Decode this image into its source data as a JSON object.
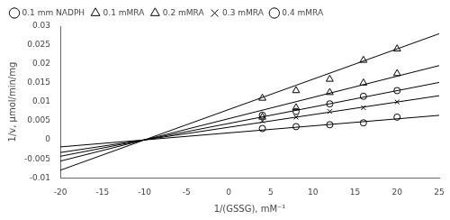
{
  "chart_data": {
    "type": "scatter",
    "xlabel": "1/(GSSG), mM⁻¹",
    "ylabel": "1/v, μmol/min/mg",
    "xlim": [
      -20,
      25
    ],
    "ylim": [
      -0.01,
      0.03
    ],
    "xticks": [
      -20,
      -15,
      -10,
      -5,
      0,
      5,
      10,
      15,
      20,
      25
    ],
    "yticks": [
      -0.01,
      -0.005,
      0,
      0.005,
      0.01,
      0.015,
      0.02,
      0.025,
      0.03
    ],
    "grid": false,
    "legend": "upper left",
    "series": [
      {
        "type": "line",
        "color": "#000000",
        "x": [
          -20,
          25
        ],
        "values": [
          -0.00433,
          0.015155
        ]
      },
      {
        "type": "line",
        "color": "#000000",
        "x": [
          -20,
          25
        ],
        "values": [
          -0.008,
          0.028
        ]
      },
      {
        "type": "line",
        "color": "#000000",
        "x": [
          -20,
          25
        ],
        "values": [
          -0.0056,
          0.0196
        ]
      },
      {
        "type": "line",
        "color": "#000000",
        "x": [
          -20,
          25
        ],
        "values": [
          -0.00333,
          0.011655
        ]
      },
      {
        "type": "line",
        "color": "#000000",
        "x": [
          -20,
          25
        ],
        "values": [
          -0.00185,
          0.006475
        ]
      },
      {
        "name": "0.1 mm NADPH",
        "type": "scatter",
        "marker": "circle",
        "color": "#000000",
        "x": [
          4,
          8,
          12,
          16,
          20
        ],
        "values": [
          0.0065,
          0.0075,
          0.0095,
          0.0115,
          0.013
        ]
      },
      {
        "name": "0.1 mMRA",
        "type": "scatter",
        "marker": "triangle",
        "color": "#000000",
        "x": [
          4,
          8,
          12,
          16,
          20
        ],
        "values": [
          0.011,
          0.013,
          0.016,
          0.021,
          0.024
        ]
      },
      {
        "name": "0.2 mMRA",
        "type": "scatter",
        "marker": "triangle",
        "color": "#000000",
        "x": [
          4,
          8,
          12,
          16,
          20
        ],
        "values": [
          0.006,
          0.0085,
          0.0125,
          0.015,
          0.0175
        ]
      },
      {
        "name": "0.3 mMRA",
        "type": "scatter",
        "marker": "x",
        "color": "#000000",
        "x": [
          4,
          8,
          12,
          16,
          20
        ],
        "values": [
          0.005,
          0.006,
          0.0075,
          0.0085,
          0.01
        ]
      },
      {
        "name": "0.4 mMRA",
        "type": "scatter",
        "marker": "circle",
        "color": "#000000",
        "x": [
          4,
          8,
          12,
          16,
          20
        ],
        "values": [
          0.003,
          0.0035,
          0.004,
          0.0045,
          0.006
        ]
      }
    ]
  }
}
